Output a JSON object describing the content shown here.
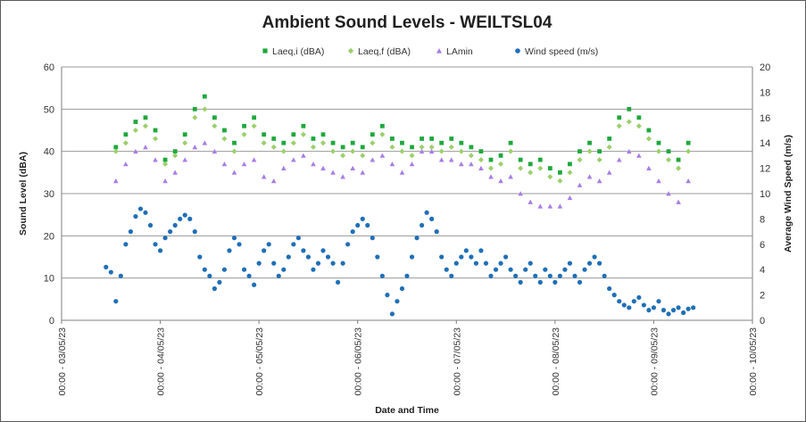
{
  "chart_data": {
    "type": "scatter",
    "title": "Ambient Sound Levels - WEILTSL04",
    "xlabel": "Date and Time",
    "ylabel": "Sound Level (dBA)",
    "y2label": "Average Wind Speed (m/s)",
    "ylim": [
      0,
      60
    ],
    "y2lim": [
      0,
      20
    ],
    "yticks": [
      "0",
      "10",
      "20",
      "30",
      "40",
      "50",
      "60"
    ],
    "y2ticks": [
      "0",
      "2",
      "4",
      "6",
      "8",
      "10",
      "12",
      "14",
      "16",
      "18",
      "20"
    ],
    "xticks": [
      "00:00 - 03/05/23",
      "00:00 - 04/05/23",
      "00:00 - 05/05/23",
      "00:00 - 06/05/23",
      "00:00 - 07/05/23",
      "00:00 - 08/05/23",
      "00:00 - 09/05/23",
      "00:00 - 10/05/23"
    ],
    "xlim_days": [
      3,
      10
    ],
    "grid": true,
    "legend_position": "top",
    "series_style": {
      "laeqi": {
        "color": "#1fa83c",
        "marker": "square"
      },
      "laeqf": {
        "color": "#9bcf6b",
        "marker": "diamond"
      },
      "lamin": {
        "color": "#a77de6",
        "marker": "triangle"
      },
      "wind": {
        "color": "#1f6fb8",
        "marker": "circle"
      }
    },
    "series": [
      {
        "id": "laeqi",
        "name": "Laeq,i (dBA)",
        "axis": "left",
        "x": [
          3.55,
          3.65,
          3.75,
          3.85,
          3.95,
          4.05,
          4.15,
          4.25,
          4.35,
          4.45,
          4.55,
          4.65,
          4.75,
          4.85,
          4.95,
          5.05,
          5.15,
          5.25,
          5.35,
          5.45,
          5.55,
          5.65,
          5.75,
          5.85,
          5.95,
          6.05,
          6.15,
          6.25,
          6.35,
          6.45,
          6.55,
          6.65,
          6.75,
          6.85,
          6.95,
          7.05,
          7.15,
          7.25,
          7.35,
          7.45,
          7.55,
          7.65,
          7.75,
          7.85,
          7.95,
          8.05,
          8.15,
          8.25,
          8.35,
          8.45,
          8.55,
          8.65,
          8.75,
          8.85,
          8.95,
          9.05,
          9.15,
          9.25,
          9.35
        ],
        "y": [
          41,
          44,
          47,
          48,
          45,
          38,
          40,
          44,
          50,
          53,
          48,
          45,
          42,
          46,
          48,
          44,
          43,
          42,
          44,
          46,
          43,
          44,
          42,
          41,
          42,
          41,
          44,
          46,
          43,
          42,
          41,
          43,
          43,
          42,
          43,
          42,
          41,
          40,
          38,
          39,
          42,
          38,
          37,
          38,
          36,
          35,
          37,
          40,
          42,
          40,
          43,
          48,
          50,
          48,
          45,
          42,
          40,
          38,
          42
        ]
      },
      {
        "id": "laeqf",
        "name": "Laeq,f (dBA)",
        "axis": "left",
        "x": [
          3.55,
          3.65,
          3.75,
          3.85,
          3.95,
          4.05,
          4.15,
          4.25,
          4.35,
          4.45,
          4.55,
          4.65,
          4.75,
          4.85,
          4.95,
          5.05,
          5.15,
          5.25,
          5.35,
          5.45,
          5.55,
          5.65,
          5.75,
          5.85,
          5.95,
          6.05,
          6.15,
          6.25,
          6.35,
          6.45,
          6.55,
          6.65,
          6.75,
          6.85,
          6.95,
          7.05,
          7.15,
          7.25,
          7.35,
          7.45,
          7.55,
          7.65,
          7.75,
          7.85,
          7.95,
          8.05,
          8.15,
          8.25,
          8.35,
          8.45,
          8.55,
          8.65,
          8.75,
          8.85,
          8.95,
          9.05,
          9.15,
          9.25,
          9.35
        ],
        "y": [
          40,
          42,
          45,
          46,
          43,
          37,
          39,
          42,
          48,
          50,
          46,
          43,
          40,
          44,
          46,
          42,
          41,
          40,
          42,
          44,
          41,
          42,
          40,
          39,
          40,
          39,
          42,
          44,
          41,
          40,
          39,
          41,
          41,
          40,
          41,
          40,
          39,
          38,
          36,
          37,
          40,
          36,
          35,
          36,
          34,
          33,
          35,
          38,
          40,
          38,
          41,
          46,
          47,
          46,
          43,
          40,
          38,
          36,
          40
        ]
      },
      {
        "id": "lamin",
        "name": "LAmin",
        "axis": "left",
        "x": [
          3.55,
          3.65,
          3.75,
          3.85,
          3.95,
          4.05,
          4.15,
          4.25,
          4.35,
          4.45,
          4.55,
          4.65,
          4.75,
          4.85,
          4.95,
          5.05,
          5.15,
          5.25,
          5.35,
          5.45,
          5.55,
          5.65,
          5.75,
          5.85,
          5.95,
          6.05,
          6.15,
          6.25,
          6.35,
          6.45,
          6.55,
          6.65,
          6.75,
          6.85,
          6.95,
          7.05,
          7.15,
          7.25,
          7.35,
          7.45,
          7.55,
          7.65,
          7.75,
          7.85,
          7.95,
          8.05,
          8.15,
          8.25,
          8.35,
          8.45,
          8.55,
          8.65,
          8.75,
          8.85,
          8.95,
          9.05,
          9.15,
          9.25,
          9.35
        ],
        "y": [
          33,
          37,
          40,
          41,
          38,
          33,
          35,
          38,
          41,
          42,
          40,
          37,
          35,
          37,
          38,
          34,
          33,
          36,
          38,
          39,
          37,
          36,
          35,
          34,
          36,
          35,
          38,
          39,
          37,
          35,
          37,
          40,
          40,
          38,
          38,
          37,
          37,
          36,
          34,
          33,
          34,
          30,
          28,
          27,
          27,
          27,
          29,
          32,
          34,
          33,
          35,
          38,
          40,
          39,
          36,
          33,
          30,
          28,
          33
        ]
      },
      {
        "id": "wind",
        "name": "Wind speed (m/s)",
        "axis": "right",
        "x": [
          3.45,
          3.5,
          3.55,
          3.6,
          3.65,
          3.7,
          3.75,
          3.8,
          3.85,
          3.9,
          3.95,
          4.0,
          4.05,
          4.1,
          4.15,
          4.2,
          4.25,
          4.3,
          4.35,
          4.4,
          4.45,
          4.5,
          4.55,
          4.6,
          4.65,
          4.7,
          4.75,
          4.8,
          4.85,
          4.9,
          4.95,
          5.0,
          5.05,
          5.1,
          5.15,
          5.2,
          5.25,
          5.3,
          5.35,
          5.4,
          5.45,
          5.5,
          5.55,
          5.6,
          5.65,
          5.7,
          5.75,
          5.8,
          5.85,
          5.9,
          5.95,
          6.0,
          6.05,
          6.1,
          6.15,
          6.2,
          6.25,
          6.3,
          6.35,
          6.4,
          6.45,
          6.5,
          6.55,
          6.6,
          6.65,
          6.7,
          6.75,
          6.8,
          6.85,
          6.9,
          6.95,
          7.0,
          7.05,
          7.1,
          7.15,
          7.2,
          7.25,
          7.3,
          7.35,
          7.4,
          7.45,
          7.5,
          7.55,
          7.6,
          7.65,
          7.7,
          7.75,
          7.8,
          7.85,
          7.9,
          7.95,
          8.0,
          8.05,
          8.1,
          8.15,
          8.2,
          8.25,
          8.3,
          8.35,
          8.4,
          8.45,
          8.5,
          8.55,
          8.6,
          8.65,
          8.7,
          8.75,
          8.8,
          8.85,
          8.9,
          8.95,
          9.0,
          9.05,
          9.1,
          9.15,
          9.2,
          9.25,
          9.3,
          9.35,
          9.4
        ],
        "y": [
          4.2,
          3.8,
          1.5,
          3.5,
          6.0,
          7.0,
          8.2,
          8.8,
          8.5,
          7.5,
          6.0,
          5.5,
          6.5,
          7.0,
          7.5,
          8.0,
          8.3,
          8.0,
          7.0,
          5.0,
          4.0,
          3.5,
          2.5,
          3.0,
          4.0,
          5.5,
          6.5,
          6.0,
          4.0,
          3.5,
          2.8,
          4.5,
          5.5,
          6.0,
          4.5,
          3.5,
          4.0,
          5.0,
          6.0,
          6.5,
          5.5,
          5.0,
          4.0,
          4.5,
          5.5,
          5.0,
          4.5,
          3.0,
          4.5,
          6.0,
          7.0,
          7.5,
          8.0,
          7.5,
          6.5,
          5.0,
          3.5,
          2.0,
          0.5,
          1.5,
          2.5,
          3.5,
          5.0,
          6.5,
          7.5,
          8.5,
          8.0,
          7.0,
          5.0,
          4.0,
          3.5,
          4.5,
          5.0,
          5.5,
          5.0,
          4.5,
          5.5,
          4.5,
          3.5,
          4.0,
          4.5,
          5.0,
          4.0,
          3.5,
          3.0,
          4.0,
          4.5,
          3.5,
          3.0,
          4.0,
          3.5,
          3.0,
          3.5,
          4.0,
          4.5,
          3.5,
          3.0,
          4.0,
          4.5,
          5.0,
          4.5,
          3.5,
          2.5,
          2.0,
          1.5,
          1.2,
          1.0,
          1.5,
          1.8,
          1.2,
          0.8,
          1.0,
          1.5,
          0.8,
          0.5,
          0.8,
          1.0,
          0.6,
          0.9,
          1.0
        ]
      }
    ]
  }
}
